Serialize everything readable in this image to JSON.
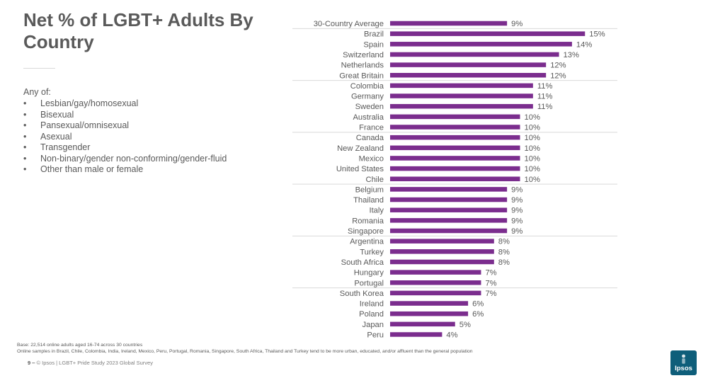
{
  "title": "Net % of LGBT+ Adults By Country",
  "definition": {
    "intro": "Any of:",
    "bullet_symbol": "•",
    "items": [
      "Lesbian/gay/homosexual",
      "Bisexual",
      "Pansexual/omnisexual",
      "Asexual",
      "Transgender",
      "Non-binary/gender non-conforming/gender-fluid",
      "Other than male or female"
    ]
  },
  "chart_data": {
    "type": "bar",
    "orientation": "horizontal",
    "bar_color": "#7b2d8e",
    "value_suffix": "%",
    "xlim": [
      0,
      16
    ],
    "categories": [
      "30-Country Average",
      "Brazil",
      "Spain",
      "Switzerland",
      "Netherlands",
      "Great Britain",
      "Colombia",
      "Germany",
      "Sweden",
      "Australia",
      "France",
      "Canada",
      "New Zealand",
      "Mexico",
      "United States",
      "Chile",
      "Belgium",
      "Thailand",
      "Italy",
      "Romania",
      "Singapore",
      "Argentina",
      "Turkey",
      "South Africa",
      "Hungary",
      "Portugal",
      "South Korea",
      "Ireland",
      "Poland",
      "Japan",
      "Peru"
    ],
    "values": [
      9,
      15,
      14,
      13,
      12,
      12,
      11,
      11,
      11,
      10,
      10,
      10,
      10,
      10,
      10,
      10,
      9,
      9,
      9,
      9,
      9,
      8,
      8,
      8,
      7,
      7,
      7,
      6,
      6,
      5,
      4
    ],
    "group_separators_after_index": [
      0,
      5,
      10,
      15,
      20,
      25
    ]
  },
  "notes": {
    "base": "Base: 22,514 online adults aged 16-74 across 30 countries",
    "samples": "Online samples in Brazil, Chile, Colombia, India, Ireland, Mexico, Peru, Portugal, Romania, Singapore, South Africa, Thailand and Turkey tend to be more urban, educated, and/or affluent than the general population"
  },
  "footer": {
    "page": "9 ‒",
    "source": "© Ipsos | LGBT+ Pride Study 2023 Global Survey"
  },
  "logo": {
    "text": "Ipsos",
    "color": "#0e5e7a"
  }
}
